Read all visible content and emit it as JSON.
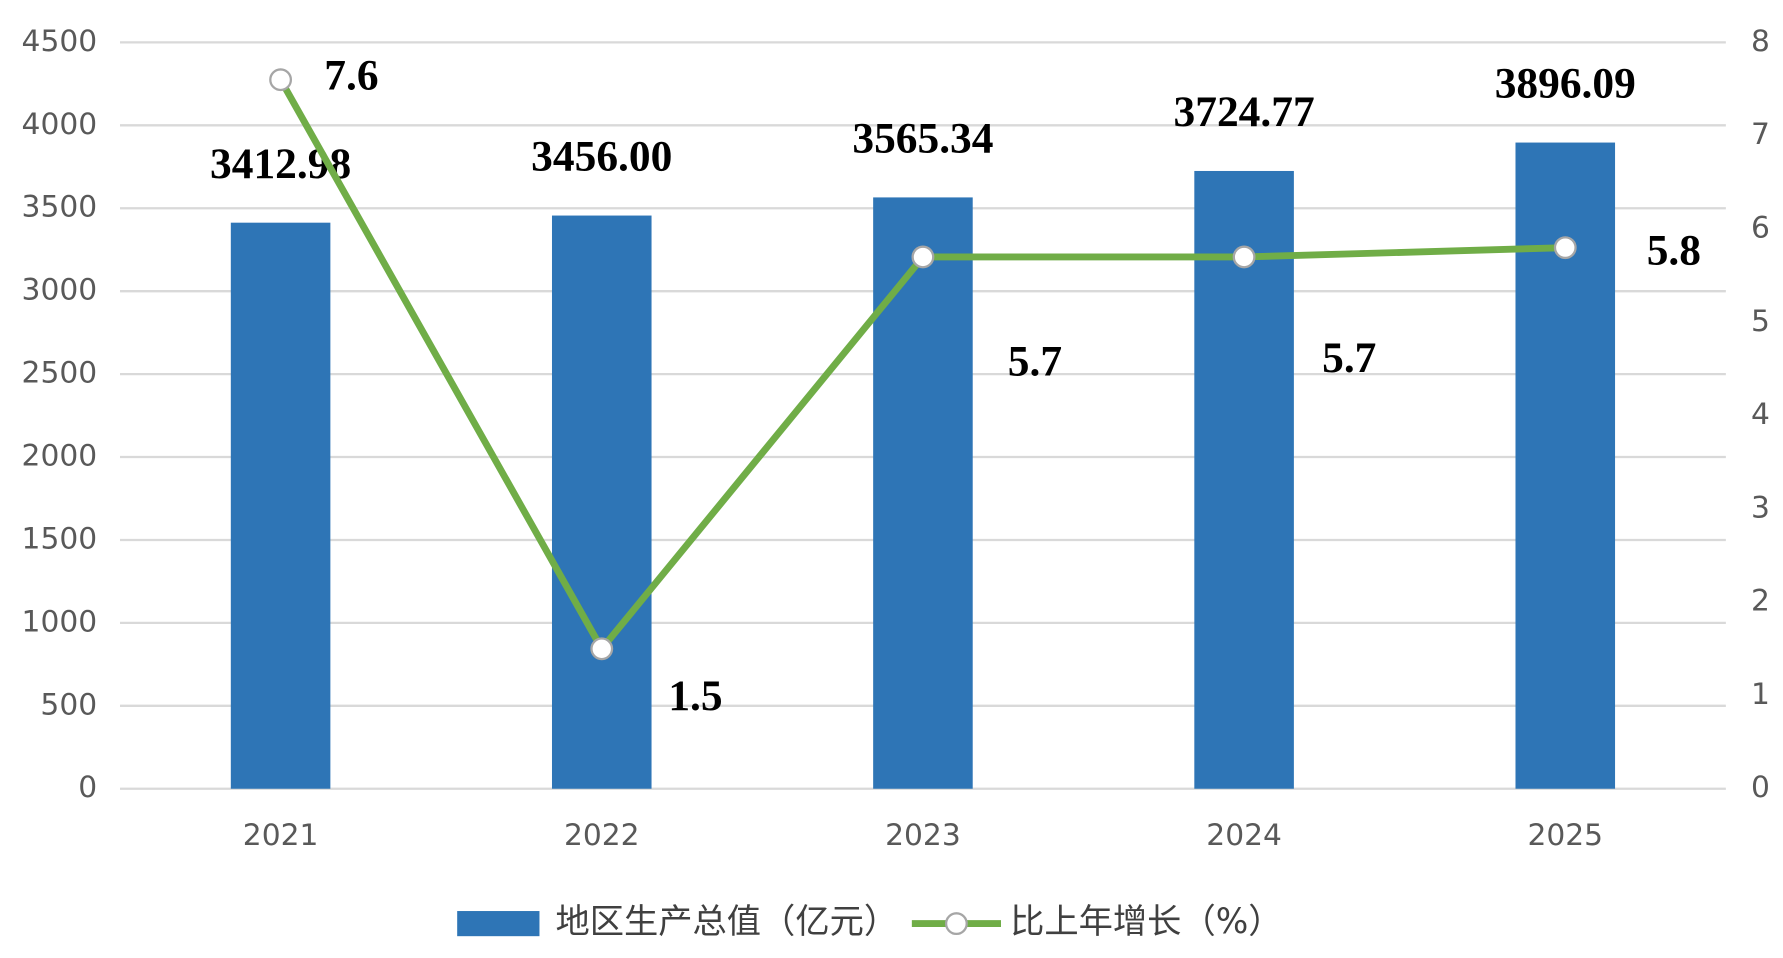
{
  "chart_data": {
    "type": "bar",
    "categories": [
      "2021",
      "2022",
      "2023",
      "2024",
      "2025"
    ],
    "series": [
      {
        "name": "地区生产总值（亿元）",
        "type": "bar",
        "color": "#2e75b6",
        "values": [
          3412.98,
          3456,
          3565.34,
          3724.77,
          3896.09
        ],
        "value_labels": [
          "3412.98",
          "3456.00",
          "3565.34",
          "3724.77",
          "3896.09"
        ]
      },
      {
        "name": "比上年增长（%）",
        "type": "line",
        "axis": "y2",
        "color": "#70ad47",
        "values": [
          7.6,
          1.5,
          5.7,
          5.7,
          5.8
        ]
      }
    ],
    "ylim": [
      0,
      4500
    ],
    "yticks": [
      0,
      500,
      1000,
      1500,
      2000,
      2500,
      3000,
      3500,
      4000,
      4500
    ],
    "y2lim": [
      0,
      8
    ],
    "y2ticks": [
      0,
      1,
      2,
      3,
      4,
      5,
      6,
      7,
      8
    ],
    "grid": true,
    "legend": "bottom"
  }
}
